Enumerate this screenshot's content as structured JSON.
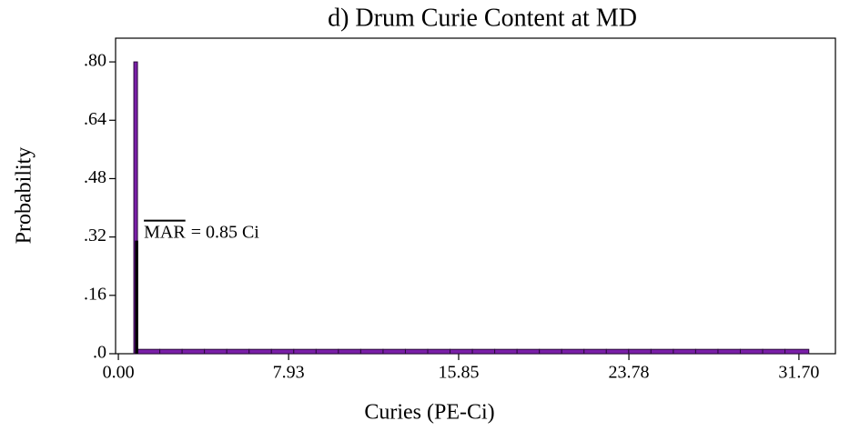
{
  "chart_data": {
    "type": "histogram",
    "title": "d) Drum Curie Content at MD",
    "x_label": "Curies (PE-Ci)",
    "y_label": "Probability",
    "bins": [
      0.72,
      0.89,
      1.93,
      2.97,
      4.01,
      5.05,
      6.09,
      7.13,
      8.17,
      9.21,
      10.25,
      11.29,
      12.33,
      13.37,
      14.41,
      15.45,
      16.49,
      17.53,
      18.57,
      19.61,
      20.65,
      21.69,
      22.73,
      23.77,
      24.81,
      25.85,
      26.89,
      27.93,
      28.97,
      30.01,
      31.05,
      32.16
    ],
    "values": [
      0.8,
      0.012,
      0.012,
      0.012,
      0.012,
      0.012,
      0.012,
      0.012,
      0.012,
      0.012,
      0.012,
      0.012,
      0.012,
      0.012,
      0.012,
      0.012,
      0.012,
      0.012,
      0.012,
      0.012,
      0.012,
      0.012,
      0.012,
      0.012,
      0.012,
      0.012,
      0.012,
      0.012,
      0.012,
      0.012,
      0.012
    ],
    "color": "#7a1fa8",
    "xlim": [
      -0.13,
      33.4
    ],
    "ylim": [
      0,
      0.865
    ],
    "xticks": [
      {
        "value": 0,
        "label": "0.00"
      },
      7.93,
      15.85,
      23.78,
      {
        "value": 31.7,
        "label": "31.70"
      }
    ],
    "yticks": [
      {
        "value": 0,
        "label": ".0"
      },
      {
        "value": 0.16,
        "label": ".16"
      },
      {
        "value": 0.32,
        "label": ".32"
      },
      {
        "value": 0.48,
        "label": ".48"
      },
      {
        "value": 0.64,
        "label": ".64"
      },
      {
        "value": 0.8,
        "label": ".80"
      }
    ],
    "annotation": {
      "label": "MAR",
      "text": "= 0.85 Ci",
      "x": 0.85,
      "y": 0.31
    }
  }
}
